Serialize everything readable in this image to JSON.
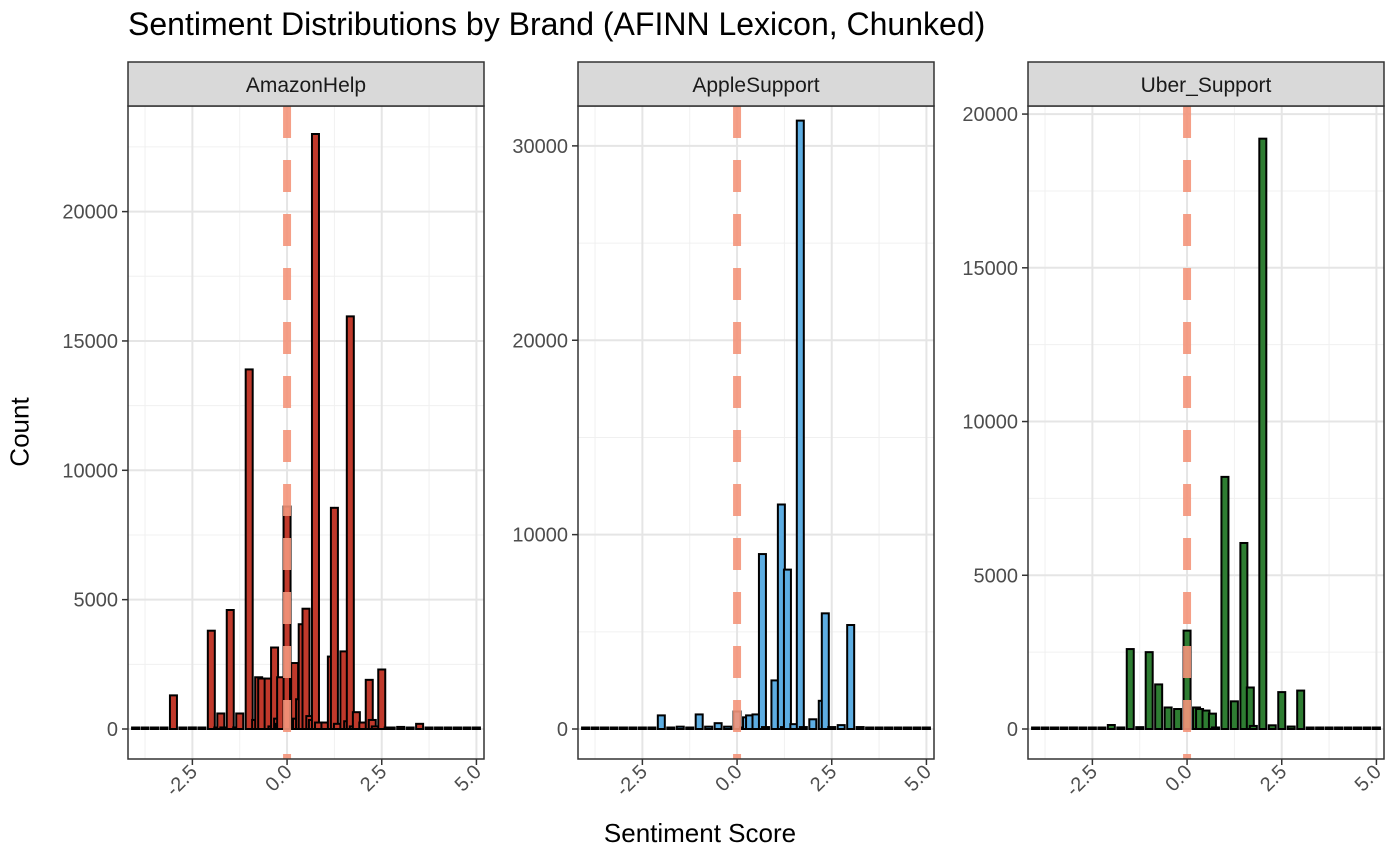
{
  "chart_data": {
    "type": "bar",
    "title": "Sentiment Distributions by Brand (AFINN Lexicon, Chunked)",
    "xlabel": "Sentiment Score",
    "ylabel": "Count",
    "x_ticks": [
      "-2.5",
      "0.0",
      "2.5",
      "5.0"
    ],
    "xlim": [
      -4.2,
      5.2
    ],
    "reference_line": {
      "x": 0,
      "style": "dashed",
      "color": "#f4957b"
    },
    "grid": true,
    "panels": [
      {
        "name": "AmazonHelp",
        "fill_color": "#c0392b",
        "ylim": [
          0,
          23000
        ],
        "y_ticks": [
          0,
          5000,
          10000,
          15000,
          20000
        ],
        "x": [
          -4.0,
          -3.75,
          -3.5,
          -3.25,
          -3.0,
          -2.75,
          -2.5,
          -2.25,
          -2.0,
          -1.83,
          -1.75,
          -1.67,
          -1.5,
          -1.33,
          -1.25,
          -1.0,
          -0.83,
          -0.75,
          -0.67,
          -0.5,
          -0.4,
          -0.33,
          -0.25,
          -0.2,
          -0.17,
          0.0,
          0.17,
          0.2,
          0.25,
          0.33,
          0.4,
          0.5,
          0.6,
          0.67,
          0.75,
          0.83,
          1.0,
          1.17,
          1.25,
          1.33,
          1.5,
          1.6,
          1.67,
          1.75,
          1.83,
          2.0,
          2.17,
          2.25,
          2.33,
          2.5,
          2.67,
          2.75,
          3.0,
          3.25,
          3.5,
          3.75,
          4.0,
          4.25,
          4.5,
          4.75,
          5.0
        ],
        "values": [
          10,
          20,
          30,
          40,
          1300,
          40,
          60,
          50,
          3800,
          50,
          600,
          60,
          4600,
          60,
          600,
          13900,
          350,
          2000,
          1950,
          1950,
          100,
          3150,
          400,
          200,
          2000,
          8600,
          1950,
          2550,
          400,
          1150,
          4050,
          4650,
          500,
          350,
          23000,
          250,
          250,
          2800,
          8550,
          200,
          3000,
          300,
          15950,
          100,
          650,
          250,
          1900,
          350,
          100,
          2300,
          50,
          40,
          80,
          40,
          200,
          30,
          20,
          15,
          15,
          10,
          10
        ]
      },
      {
        "name": "AppleSupport",
        "fill_color": "#5dade2",
        "ylim": [
          0,
          32000
        ],
        "y_ticks": [
          0,
          10000,
          20000,
          30000
        ],
        "x": [
          -4.0,
          -3.75,
          -3.5,
          -3.25,
          -3.0,
          -2.75,
          -2.5,
          -2.25,
          -2.0,
          -1.75,
          -1.5,
          -1.25,
          -1.0,
          -0.75,
          -0.5,
          -0.25,
          0.0,
          0.17,
          0.25,
          0.33,
          0.5,
          0.67,
          0.75,
          1.0,
          1.17,
          1.25,
          1.33,
          1.5,
          1.67,
          1.75,
          2.0,
          2.25,
          2.33,
          2.5,
          2.75,
          3.0,
          3.25,
          3.5,
          3.75,
          4.0,
          4.25,
          4.5,
          4.75,
          5.0
        ],
        "values": [
          10,
          20,
          20,
          30,
          60,
          30,
          40,
          40,
          700,
          40,
          120,
          40,
          750,
          120,
          300,
          120,
          900,
          50,
          600,
          700,
          750,
          9000,
          100,
          2500,
          11550,
          100,
          8200,
          250,
          31300,
          100,
          500,
          1450,
          5950,
          100,
          200,
          5350,
          100,
          20,
          60,
          40,
          20,
          20,
          10,
          10
        ]
      },
      {
        "name": "Uber_Support",
        "fill_color": "#2e7d32",
        "ylim": [
          0,
          20100
        ],
        "y_ticks": [
          0,
          5000,
          10000,
          15000,
          20000
        ],
        "x": [
          -4.0,
          -3.75,
          -3.5,
          -3.25,
          -3.0,
          -2.75,
          -2.5,
          -2.25,
          -2.0,
          -1.75,
          -1.5,
          -1.25,
          -1.0,
          -0.75,
          -0.5,
          -0.25,
          0.0,
          0.25,
          0.33,
          0.5,
          0.67,
          0.75,
          1.0,
          1.25,
          1.5,
          1.67,
          1.75,
          2.0,
          2.25,
          2.5,
          2.75,
          3.0,
          3.25,
          3.5,
          3.75,
          4.0,
          4.25,
          4.5,
          4.75,
          5.0
        ],
        "values": [
          10,
          10,
          20,
          30,
          50,
          30,
          40,
          40,
          130,
          50,
          2600,
          60,
          2500,
          1450,
          700,
          650,
          3200,
          700,
          650,
          600,
          500,
          50,
          8200,
          900,
          6050,
          1350,
          100,
          19200,
          120,
          1200,
          80,
          1250,
          40,
          30,
          20,
          20,
          15,
          10,
          10,
          10
        ]
      }
    ]
  }
}
